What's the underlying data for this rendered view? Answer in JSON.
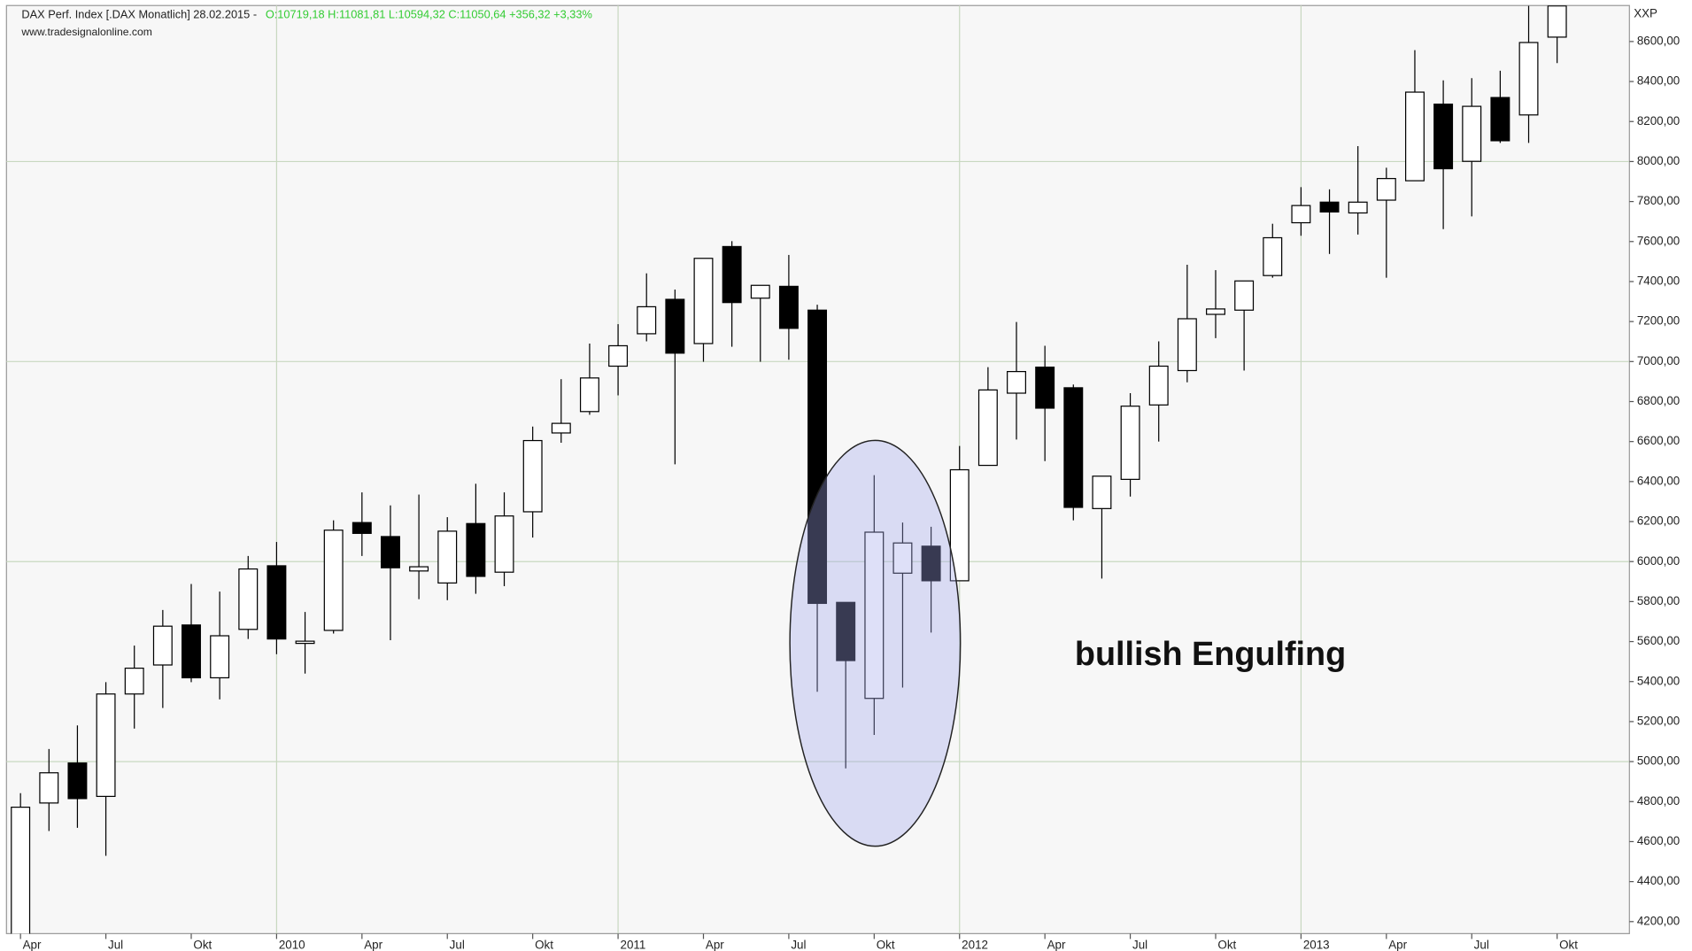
{
  "chart_data": {
    "type": "candlestick",
    "title": "DAX Perf. Index [.DAX  Monatlich] 28.02.2015 -",
    "quote": "O:10719,18 H:11081,81 L:10594,32 C:11050,64 +356,32 +3,33%",
    "source": "www.tradesignalonline.com",
    "symbol_label": "XXP",
    "annotation": "bullish Engulfing",
    "categories": [
      "Apr",
      null,
      null,
      "Jul",
      null,
      null,
      "Okt",
      null,
      null,
      "2010",
      null,
      null,
      "Apr",
      null,
      null,
      "Jul",
      null,
      null,
      "Okt",
      null,
      null,
      "2011",
      null,
      null,
      "Apr",
      null,
      null,
      "Jul",
      null,
      null,
      "Okt",
      null,
      null,
      "2012",
      null,
      null,
      "Apr",
      null,
      null,
      "Jul",
      null,
      null,
      "Okt",
      null,
      null,
      "2013",
      null,
      null,
      "Apr",
      null,
      null,
      "Jul",
      null,
      null,
      "Okt"
    ],
    "open": [
      4130,
      4793,
      4993,
      4826,
      5338,
      5483,
      5683,
      5419,
      5661,
      5979,
      5591,
      5656,
      6195,
      6125,
      5953,
      5893,
      6190,
      5947,
      6249,
      6643,
      6750,
      6977,
      7139,
      7311,
      7090,
      7575,
      7317,
      7376,
      7257,
      5796,
      5316,
      5942,
      6077,
      5904,
      6481,
      6842,
      6972,
      6869,
      6265,
      6411,
      6783,
      6955,
      7236,
      7257,
      7430,
      7694,
      7797,
      7743,
      7807,
      7904,
      8287,
      8001,
      8320,
      8233,
      8622
    ],
    "high": [
      4842,
      5063,
      5181,
      5397,
      5580,
      5758,
      5888,
      5850,
      6028,
      6098,
      5748,
      6206,
      6346,
      6281,
      6335,
      6222,
      6389,
      6346,
      6675,
      6912,
      7090,
      7187,
      7441,
      7360,
      7516,
      7602,
      7381,
      7533,
      7284,
      5796,
      6432,
      6195,
      6174,
      6578,
      6972,
      7198,
      7079,
      6885,
      6427,
      6842,
      7101,
      7484,
      7457,
      7403,
      7689,
      7872,
      7861,
      8077,
      7969,
      8557,
      8406,
      8417,
      8454,
      8778,
      8778
    ],
    "low": [
      4100,
      4653,
      4669,
      4529,
      5165,
      5268,
      5397,
      5311,
      5613,
      5537,
      5440,
      5640,
      6028,
      5607,
      5812,
      5807,
      5839,
      5877,
      6120,
      6594,
      6734,
      6831,
      7101,
      6486,
      6999,
      7074,
      6999,
      7009,
      5349,
      4966,
      5133,
      5370,
      5645,
      5904,
      6481,
      6610,
      6502,
      6206,
      5915,
      6325,
      6600,
      6896,
      7117,
      6955,
      7419,
      7629,
      7538,
      7635,
      7419,
      7904,
      7662,
      7726,
      8093,
      8093,
      8492
    ],
    "close": [
      4772,
      4944,
      4815,
      5338,
      5467,
      5677,
      5419,
      5629,
      5963,
      5613,
      5602,
      6157,
      6141,
      5969,
      5974,
      6152,
      5926,
      6228,
      6605,
      6691,
      6918,
      7079,
      7274,
      7042,
      7516,
      7295,
      7381,
      7166,
      5791,
      5505,
      6147,
      6093,
      5904,
      6459,
      6858,
      6950,
      6767,
      6271,
      6427,
      6777,
      6977,
      7214,
      7263,
      7403,
      7619,
      7780,
      7748,
      7797,
      7915,
      8347,
      7964,
      8276,
      8104,
      8595,
      8778
    ],
    "up_color": "#ffffff",
    "down_color": "#000000",
    "quote_color": "#33cc33",
    "ylim": [
      4140,
      8780
    ],
    "yticks": [
      {
        "value": 4200,
        "label": "4200,00"
      },
      {
        "value": 4400,
        "label": "4400,00"
      },
      {
        "value": 4600,
        "label": "4600,00"
      },
      {
        "value": 4800,
        "label": "4800,00"
      },
      {
        "value": 5000,
        "label": "5000,00"
      },
      {
        "value": 5200,
        "label": "5200,00"
      },
      {
        "value": 5400,
        "label": "5400,00"
      },
      {
        "value": 5600,
        "label": "5600,00"
      },
      {
        "value": 5800,
        "label": "5800,00"
      },
      {
        "value": 6000,
        "label": "6000,00"
      },
      {
        "value": 6200,
        "label": "6200,00"
      },
      {
        "value": 6400,
        "label": "6400,00"
      },
      {
        "value": 6600,
        "label": "6600,00"
      },
      {
        "value": 6800,
        "label": "6800,00"
      },
      {
        "value": 7000,
        "label": "7000,00"
      },
      {
        "value": 7200,
        "label": "7200,00"
      },
      {
        "value": 7400,
        "label": "7400,00"
      },
      {
        "value": 7600,
        "label": "7600,00"
      },
      {
        "value": 7800,
        "label": "7800,00"
      },
      {
        "value": 8000,
        "label": "8000,00"
      },
      {
        "value": 8200,
        "label": "8200,00"
      },
      {
        "value": 8400,
        "label": "8400,00"
      },
      {
        "value": 8600,
        "label": "8600,00"
      }
    ],
    "grid": true
  }
}
